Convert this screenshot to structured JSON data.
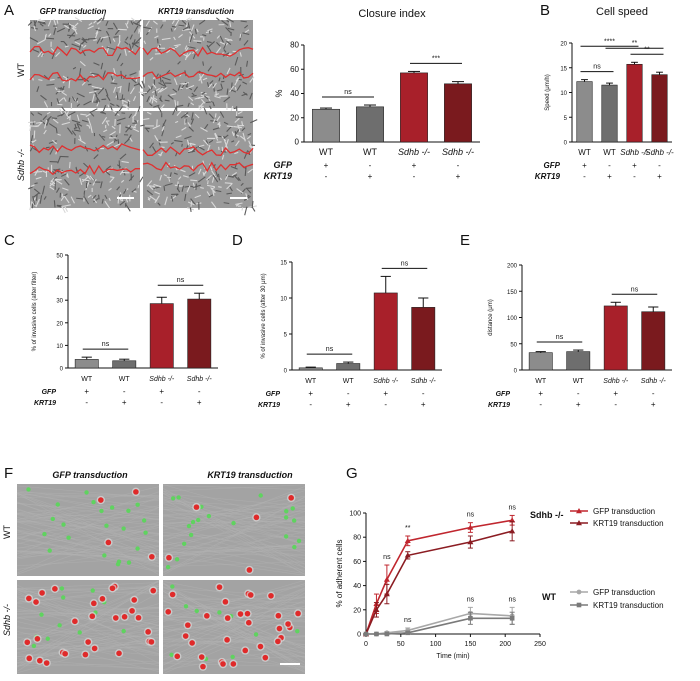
{
  "panels": {
    "A": "A",
    "B": "B",
    "C": "C",
    "D": "D",
    "E": "E",
    "F": "F",
    "G": "G"
  },
  "micro_A": {
    "col_labels": [
      "GFP transduction",
      "KRT19 transduction"
    ],
    "row_labels": [
      "WT",
      "Sdhb -/-"
    ]
  },
  "micro_F": {
    "col_labels": [
      "GFP transduction",
      "KRT19 transduction"
    ],
    "row_labels": [
      "WT",
      "Sdhb -/-"
    ]
  },
  "condition_rows": {
    "genotypes": [
      "WT",
      "WT",
      "Sdhb -/-",
      "Sdhb -/-"
    ],
    "gfp_label": "GFP",
    "krt19_label": "KRT19",
    "gfp": [
      "+",
      "-",
      "+",
      "-"
    ],
    "krt19": [
      "-",
      "+",
      "-",
      "+"
    ]
  },
  "colors": {
    "wt_gfp": "#8c8c8c",
    "wt_krt19": "#6e6e6e",
    "sdhb_gfp": "#a8202a",
    "sdhb_krt19": "#7a1a1e",
    "line_sdhb_gfp": "#c0262e",
    "line_sdhb_krt19": "#8b1c22",
    "line_wt_gfp": "#a8a8a8",
    "line_wt_krt19": "#7a7a7a",
    "outline_red": "#e03030",
    "cell_green": "#5fd35f",
    "cell_red": "#e02a2a"
  },
  "chart_data": [
    {
      "id": "A-closure",
      "type": "bar",
      "title": "Closure index",
      "ylabel": "%",
      "ylim": [
        0,
        80
      ],
      "yticks": [
        0,
        20,
        40,
        60,
        80
      ],
      "values": [
        27,
        29,
        57,
        48
      ],
      "errors": [
        1,
        1.5,
        1.2,
        1.8
      ],
      "significance": [
        {
          "from": 0,
          "to": 1,
          "label": "ns"
        },
        {
          "from": 2,
          "to": 3,
          "label": "***"
        }
      ]
    },
    {
      "id": "B-speed",
      "type": "bar",
      "title": "Cell speed",
      "ylabel": "Speed (μm/h)",
      "ylim": [
        0,
        20
      ],
      "yticks": [
        0,
        5,
        10,
        15,
        20
      ],
      "values": [
        12.2,
        11.5,
        15.7,
        13.6
      ],
      "errors": [
        0.4,
        0.4,
        0.4,
        0.5
      ],
      "significance": [
        {
          "from": 0,
          "to": 1,
          "label": "ns"
        },
        {
          "from": 0,
          "to": 2,
          "label": "****"
        },
        {
          "from": 2,
          "to": 3,
          "label": "**"
        },
        {
          "from": 1,
          "to": 3,
          "label": "**"
        }
      ]
    },
    {
      "id": "C-invasive-filter",
      "type": "bar",
      "ylabel": "% of invasive cells (after filter)",
      "ylim": [
        0,
        50
      ],
      "yticks": [
        0,
        10,
        20,
        30,
        40,
        50
      ],
      "values": [
        3.8,
        3.2,
        28.5,
        30.5
      ],
      "errors": [
        1.0,
        0.7,
        2.8,
        2.6
      ],
      "significance": [
        {
          "from": 0,
          "to": 1,
          "label": "ns"
        },
        {
          "from": 2,
          "to": 3,
          "label": "ns"
        }
      ]
    },
    {
      "id": "D-invasive-30um",
      "type": "bar",
      "ylabel": "% of invasive cells (after 30 μm)",
      "ylim": [
        0,
        15
      ],
      "yticks": [
        0,
        5,
        10,
        15
      ],
      "values": [
        0.3,
        0.9,
        10.7,
        8.7
      ],
      "errors": [
        0.1,
        0.2,
        2.3,
        1.3
      ],
      "significance": [
        {
          "from": 0,
          "to": 1,
          "label": "ns"
        },
        {
          "from": 2,
          "to": 3,
          "label": "ns"
        }
      ]
    },
    {
      "id": "E-distance",
      "type": "bar",
      "ylabel": "distance (μm)",
      "ylim": [
        0,
        200
      ],
      "yticks": [
        0,
        50,
        100,
        150,
        200
      ],
      "values": [
        33,
        35,
        122,
        111
      ],
      "errors": [
        2,
        3,
        7,
        9
      ],
      "significance": [
        {
          "from": 0,
          "to": 1,
          "label": "ns"
        },
        {
          "from": 2,
          "to": 3,
          "label": "ns"
        }
      ]
    },
    {
      "id": "G-adhesion",
      "type": "line",
      "xlabel": "Time (min)",
      "ylabel": "% of adherent cells",
      "xlim": [
        0,
        250
      ],
      "ylim": [
        0,
        100
      ],
      "xticks": [
        0,
        50,
        100,
        150,
        200,
        250
      ],
      "yticks": [
        0,
        20,
        40,
        60,
        80,
        100
      ],
      "x": [
        0,
        15,
        30,
        60,
        150,
        210
      ],
      "series": [
        {
          "name": "GFP transduction",
          "group": "Sdhb -/-",
          "values": [
            0,
            25,
            45,
            77,
            88,
            94
          ],
          "errors": [
            0,
            8,
            12,
            4,
            4,
            4
          ]
        },
        {
          "name": "KRT19 transduction",
          "group": "Sdhb -/-",
          "values": [
            0,
            20,
            33,
            65,
            76,
            85
          ],
          "errors": [
            0,
            6,
            8,
            3,
            5,
            8
          ]
        },
        {
          "name": "GFP transduction",
          "group": "WT",
          "values": [
            0,
            0,
            1,
            3,
            17,
            15
          ],
          "errors": [
            0,
            0.5,
            1,
            2,
            5,
            7
          ]
        },
        {
          "name": "KRT19 transduction",
          "group": "WT",
          "values": [
            0,
            0,
            0,
            1,
            13,
            13
          ],
          "errors": [
            0,
            0.5,
            0.5,
            1,
            5,
            5
          ]
        }
      ],
      "annotations": [
        {
          "x": 30,
          "label": "ns"
        },
        {
          "x": 60,
          "label": "**"
        },
        {
          "x": 150,
          "label": "ns"
        },
        {
          "x": 210,
          "label": "ns"
        },
        {
          "x": 60,
          "label": "ns",
          "low": true
        },
        {
          "x": 150,
          "label": "ns",
          "low": true
        },
        {
          "x": 210,
          "label": "ns",
          "low": true
        }
      ],
      "legend_groups": [
        "Sdhb -/-",
        "WT"
      ]
    }
  ]
}
